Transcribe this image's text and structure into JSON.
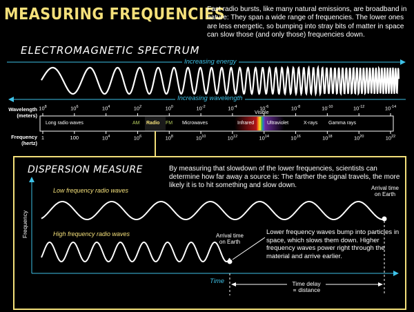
{
  "title": "MEASURING FREQUENCIES",
  "intro": "Fast radio bursts, like many natural emissions, are broadband in nature: They span a wide range of frequencies. The lower ones are less energetic, so bumping into stray bits of matter in space can slow those (and only those) frequencies down.",
  "spectrum": {
    "title": "ELECTROMAGNETIC SPECTRUM",
    "increasing_energy": "Increasing energy",
    "increasing_wavelength": "Increasing wavelength",
    "wavelength_label_1": "Wavelength",
    "wavelength_label_2": "(meters)",
    "frequency_label_1": "Frequency",
    "frequency_label_2": "(hertz)",
    "wavelength_ticks": [
      {
        "base": "10",
        "exp": "8"
      },
      {
        "base": "10",
        "exp": "6"
      },
      {
        "base": "10",
        "exp": "4"
      },
      {
        "base": "10",
        "exp": "2"
      },
      {
        "base": "10",
        "exp": "0"
      },
      {
        "base": "10",
        "exp": "-2"
      },
      {
        "base": "10",
        "exp": "-4"
      },
      {
        "base": "10",
        "exp": "-6"
      },
      {
        "base": "10",
        "exp": "-8"
      },
      {
        "base": "10",
        "exp": "-10"
      },
      {
        "base": "10",
        "exp": "-12"
      },
      {
        "base": "10",
        "exp": "-14"
      }
    ],
    "frequency_ticks": [
      {
        "base": "1",
        "exp": ""
      },
      {
        "base": "100",
        "exp": ""
      },
      {
        "base": "10",
        "exp": "4"
      },
      {
        "base": "10",
        "exp": "6"
      },
      {
        "base": "10",
        "exp": "8"
      },
      {
        "base": "10",
        "exp": "10"
      },
      {
        "base": "10",
        "exp": "12"
      },
      {
        "base": "10",
        "exp": "14"
      },
      {
        "base": "10",
        "exp": "16"
      },
      {
        "base": "10",
        "exp": "18"
      },
      {
        "base": "10",
        "exp": "20"
      },
      {
        "base": "10",
        "exp": "22"
      }
    ],
    "bands": {
      "long_radio": "Long radio waves",
      "am": "AM",
      "radio": "Radio",
      "fm": "FM",
      "microwaves": "Microwaves",
      "infrared": "Infrared",
      "visible": "Visible",
      "ultraviolet": "Ultraviolet",
      "xrays": "X-rays",
      "gamma": "Gamma rays"
    },
    "colors": {
      "cyan": "#3ec2e8",
      "yellow": "#f4e07a",
      "radio_green": "#b8d060"
    }
  },
  "dispersion": {
    "title": "DISPERSION MEASURE",
    "text": "By measuring that slowdown of the lower frequencies, scientists can determine how far away a source is: The farther the signal travels, the more likely it is to hit something and slow down.",
    "low_label": "Low frequency radio waves",
    "high_label": "High frequency radio waves",
    "arrival_high": "Arrival time on Earth",
    "arrival_low": "Arrival time on Earth",
    "callout": "Lower frequency waves bump into particles in space, which slows them down. Higher frequency waves power right through the material and arrive earlier.",
    "y_axis": "Frequency",
    "x_axis": "Time",
    "delay_1": "Time delay",
    "delay_2": "∝ distance"
  }
}
